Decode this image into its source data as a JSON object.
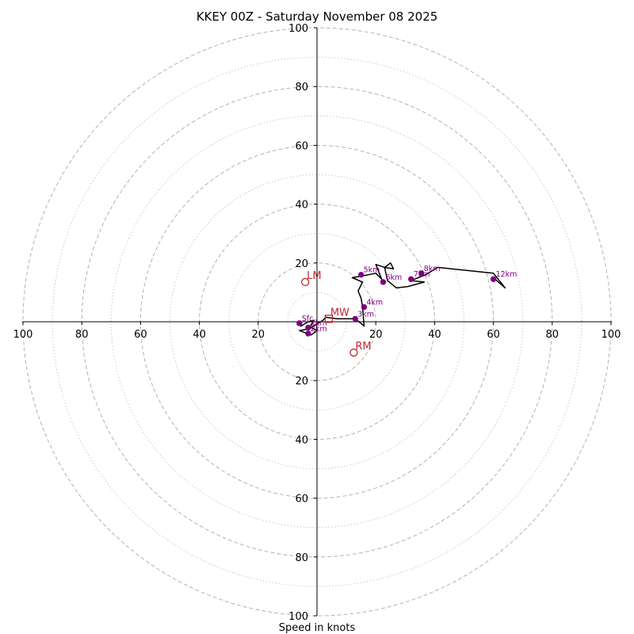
{
  "chart_data": {
    "type": "hodograph",
    "title": "KKEY 00Z - Saturday November 08 2025",
    "xlabel": "Speed in knots",
    "axis_range": [
      -100,
      100
    ],
    "ring_values_major": [
      20,
      40,
      60,
      80,
      100
    ],
    "ring_values_minor": [
      10,
      30,
      50,
      70,
      90
    ],
    "tick_labels_x": [
      "100",
      "80",
      "60",
      "40",
      "20",
      "20",
      "40",
      "60",
      "80",
      "100"
    ],
    "tick_values_x": [
      -100,
      -80,
      -60,
      -40,
      -20,
      20,
      40,
      60,
      80,
      100
    ],
    "tick_labels_y": [
      "100",
      "80",
      "60",
      "40",
      "20",
      "20",
      "40",
      "60",
      "80",
      "100"
    ],
    "tick_values_y": [
      100,
      80,
      60,
      40,
      20,
      -20,
      -40,
      -60,
      -80,
      -100
    ],
    "wind_trace": [
      {
        "u": -6,
        "v": 0
      },
      {
        "u": -5.5,
        "v": -1.5
      },
      {
        "u": -3,
        "v": 0
      },
      {
        "u": -1,
        "v": 0.5
      },
      {
        "u": -3,
        "v": -2.5
      },
      {
        "u": -6,
        "v": -3
      },
      {
        "u": -2,
        "v": -4.5
      },
      {
        "u": 0,
        "v": -3
      },
      {
        "u": -2,
        "v": -2
      },
      {
        "u": 2,
        "v": 0.5
      },
      {
        "u": 3,
        "v": 1.5
      },
      {
        "u": 7,
        "v": 1
      },
      {
        "u": 13,
        "v": 1
      },
      {
        "u": 15.5,
        "v": -1
      },
      {
        "u": 16,
        "v": -1.5
      },
      {
        "u": 15.5,
        "v": 5
      },
      {
        "u": 15,
        "v": 8
      },
      {
        "u": 14,
        "v": 10.5
      },
      {
        "u": 15.5,
        "v": 13.5
      },
      {
        "u": 12,
        "v": 15
      },
      {
        "u": 15,
        "v": 15.5
      },
      {
        "u": 20,
        "v": 16.5
      },
      {
        "u": 22,
        "v": 14.5
      },
      {
        "u": 20,
        "v": 19.5
      },
      {
        "u": 23,
        "v": 18.5
      },
      {
        "u": 25,
        "v": 20
      },
      {
        "u": 26,
        "v": 18
      },
      {
        "u": 23,
        "v": 18.5
      },
      {
        "u": 24,
        "v": 14
      },
      {
        "u": 27,
        "v": 11.5
      },
      {
        "u": 31,
        "v": 12
      },
      {
        "u": 36.5,
        "v": 13.5
      },
      {
        "u": 32,
        "v": 14
      },
      {
        "u": 37,
        "v": 16
      },
      {
        "u": 41,
        "v": 18.5
      },
      {
        "u": 60,
        "v": 16.5
      },
      {
        "u": 64,
        "v": 11.5
      },
      {
        "u": 60,
        "v": 15
      }
    ],
    "height_markers": [
      {
        "label": "Sfc",
        "u": -6,
        "v": -0.5
      },
      {
        "label": "1km",
        "u": -3,
        "v": -2
      },
      {
        "label": "2km",
        "u": -3,
        "v": -4
      },
      {
        "label": "3km",
        "u": 13,
        "v": 1
      },
      {
        "label": "4km",
        "u": 16,
        "v": 5
      },
      {
        "label": "5km",
        "u": 15,
        "v": 16
      },
      {
        "label": "6km",
        "u": 22.5,
        "v": 13.5
      },
      {
        "label": "7km",
        "u": 32,
        "v": 14.5
      },
      {
        "label": "8km",
        "u": 35.5,
        "v": 16.5
      },
      {
        "label": "12km",
        "u": 60,
        "v": 14.5
      }
    ],
    "storm_motion": [
      {
        "label": "LM",
        "u": -4,
        "v": 13.5,
        "marker": "circle"
      },
      {
        "label": "RM",
        "u": 12.5,
        "v": -10.5,
        "marker": "circle"
      },
      {
        "label": "MW",
        "u": 4,
        "v": 1,
        "marker": "square"
      }
    ],
    "colors": {
      "trace": "#000000",
      "marker": "#800080",
      "storm_motion": "#c0282d",
      "ring": "#b3b3b3",
      "axis": "#000000"
    }
  }
}
